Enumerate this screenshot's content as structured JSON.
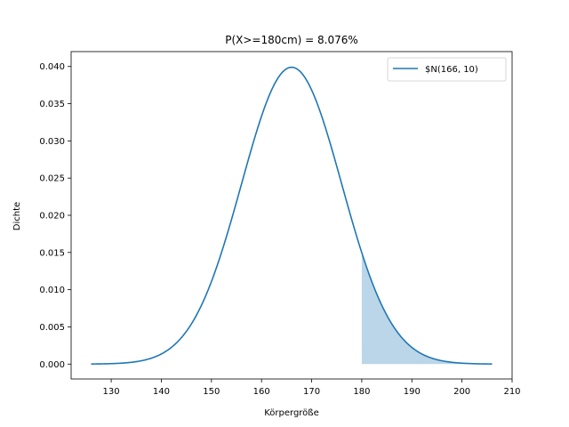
{
  "chart_data": {
    "type": "line",
    "title": "P(X>=180cm) = 8.076%",
    "xlabel": "Körpergröße",
    "ylabel": "Dichte",
    "xlim": [
      122.0,
      210.0
    ],
    "ylim": [
      -0.002,
      0.042
    ],
    "xticks": [
      130,
      140,
      150,
      160,
      170,
      180,
      190,
      200,
      210
    ],
    "yticks": [
      0.0,
      0.005,
      0.01,
      0.015,
      0.02,
      0.025,
      0.03,
      0.035,
      0.04
    ],
    "xtick_labels": [
      "130",
      "140",
      "150",
      "160",
      "170",
      "180",
      "190",
      "200",
      "210"
    ],
    "ytick_labels": [
      "0.000",
      "0.005",
      "0.010",
      "0.015",
      "0.020",
      "0.025",
      "0.030",
      "0.035",
      "0.040"
    ],
    "grid": false,
    "legend_position": "top-right",
    "series": [
      {
        "name": "$N(166, 10)",
        "color": "#1f77b4",
        "distribution": "normal",
        "mean": 166,
        "std": 10,
        "x_range": [
          126,
          206
        ]
      }
    ],
    "shaded_region": {
      "x_from": 180,
      "x_to": 206,
      "color": "#1f77b4",
      "opacity": 0.3
    }
  }
}
